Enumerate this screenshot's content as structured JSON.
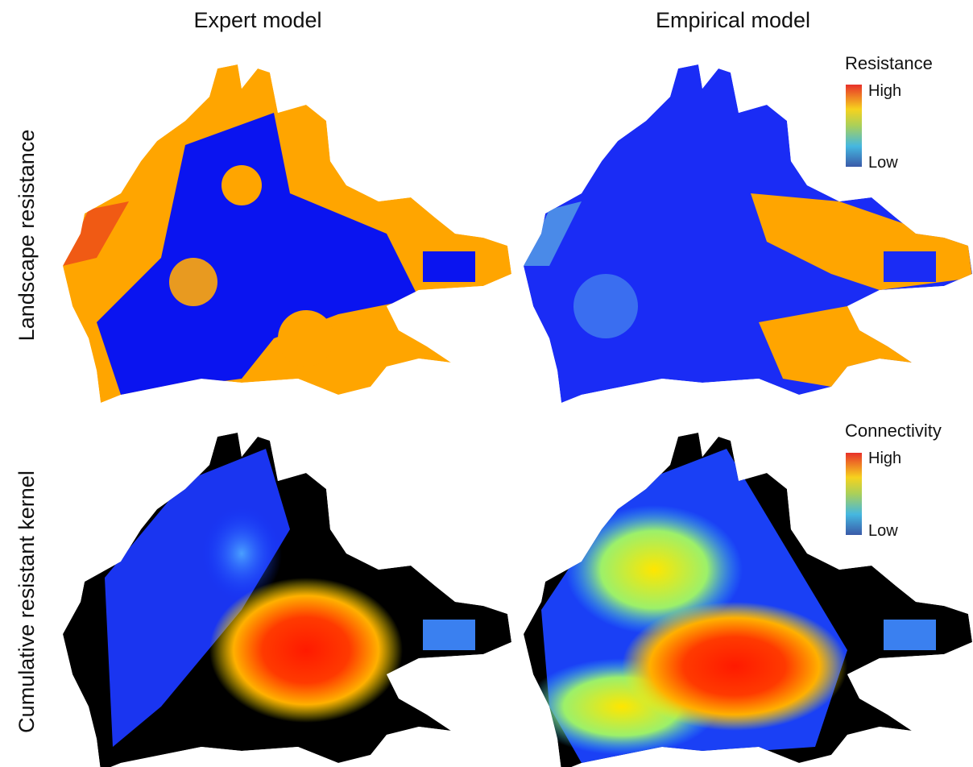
{
  "columns": [
    "Expert model",
    "Empirical model"
  ],
  "rows": [
    "Landscape resistance",
    "Cumulative resistant kernel"
  ],
  "legends": [
    {
      "title": "Resistance",
      "high": "High",
      "low": "Low"
    },
    {
      "title": "Connectivity",
      "high": "High",
      "low": "Low"
    }
  ]
}
